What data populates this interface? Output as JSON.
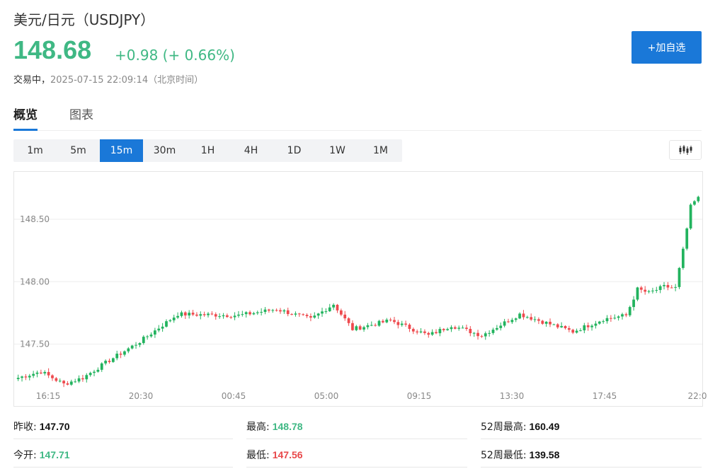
{
  "header": {
    "title": "美元/日元（USDJPY）",
    "price": "148.68",
    "change": "+0.98 (+ 0.66%)",
    "status": "交易中，",
    "timestamp": "2025-07-15 22:09:14（北京时间）",
    "add_button": "+加自选"
  },
  "tabs": [
    {
      "label": "概览",
      "active": true
    },
    {
      "label": "图表",
      "active": false
    }
  ],
  "periods": [
    "1m",
    "5m",
    "15m",
    "30m",
    "1H",
    "4H",
    "1D",
    "1W",
    "1M"
  ],
  "active_period": "15m",
  "stats": {
    "prev_close": {
      "label": "昨收:",
      "value": "147.70"
    },
    "high": {
      "label": "最高:",
      "value": "148.78"
    },
    "high52": {
      "label": "52周最高:",
      "value": "160.49"
    },
    "open": {
      "label": "今开:",
      "value": "147.71"
    },
    "low": {
      "label": "最低:",
      "value": "147.56"
    },
    "low52": {
      "label": "52周最低:",
      "value": "139.58"
    }
  },
  "colors": {
    "up": "#22b35e",
    "down": "#ee4a4e",
    "accent": "#1a78d8"
  },
  "chart_data": {
    "type": "candlestick",
    "interval": "15m",
    "x_tick_labels": [
      "16:15",
      "20:30",
      "00:45",
      "05:00",
      "09:15",
      "13:30",
      "17:45",
      "22:0"
    ],
    "y_tick_labels": [
      "148.50",
      "148.00",
      "147.50"
    ],
    "ylim": [
      147.18,
      148.88
    ],
    "grid": true,
    "anchors": [
      [
        0,
        147.23
      ],
      [
        6,
        147.28
      ],
      [
        12,
        147.18
      ],
      [
        17,
        147.23
      ],
      [
        24,
        147.37
      ],
      [
        32,
        147.52
      ],
      [
        42,
        147.74
      ],
      [
        58,
        147.73
      ],
      [
        68,
        147.78
      ],
      [
        77,
        147.7
      ],
      [
        83,
        147.82
      ],
      [
        88,
        147.62
      ],
      [
        98,
        147.69
      ],
      [
        108,
        147.57
      ],
      [
        114,
        147.65
      ],
      [
        122,
        147.57
      ],
      [
        132,
        147.74
      ],
      [
        146,
        147.6
      ],
      [
        154,
        147.7
      ],
      [
        160,
        147.73
      ],
      [
        163,
        147.94
      ],
      [
        166,
        147.91
      ],
      [
        170,
        147.96
      ],
      [
        173,
        147.95
      ],
      [
        175,
        148.25
      ],
      [
        177,
        148.6
      ],
      [
        179,
        148.68
      ]
    ]
  }
}
